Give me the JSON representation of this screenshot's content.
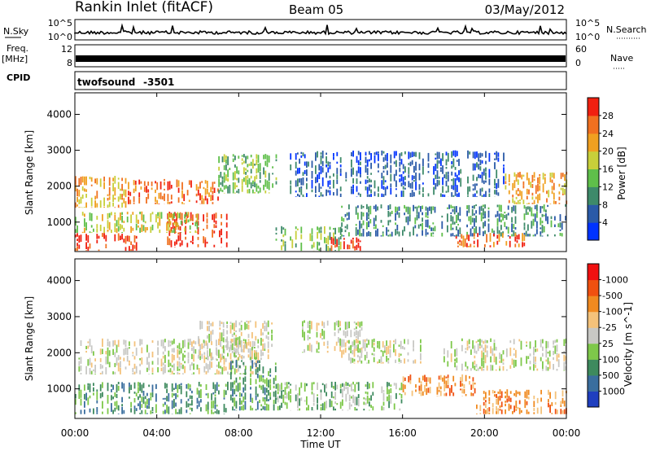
{
  "header": {
    "station": "Rankin Inlet (fitACF)",
    "beam": "Beam 05",
    "date": "03/May/2012"
  },
  "noise_panel": {
    "left_label": "N.Sky",
    "right_label": "N.Search",
    "left_ticks": [
      "10^5",
      "10^0"
    ],
    "right_ticks": [
      "10^5",
      "10^0"
    ]
  },
  "freq_panel": {
    "left_label": "Freq.",
    "left_unit": "[MHz]",
    "right_label": "Nave",
    "left_ticks": [
      "12",
      "8"
    ],
    "right_ticks": [
      "60",
      "0"
    ]
  },
  "cpid_panel": {
    "label": "CPID",
    "program": "twofsound",
    "id": "-3501"
  },
  "chart_data": [
    {
      "type": "heatmap",
      "name": "power",
      "xlabel": "",
      "ylabel": "Slant Range [km]",
      "x_ticks": [
        "00:00",
        "04:00",
        "08:00",
        "12:00",
        "16:00",
        "20:00",
        "00:00"
      ],
      "y_ticks": [
        "1000",
        "2000",
        "3000",
        "4000"
      ],
      "ylim": [
        180,
        4600
      ],
      "colorbar": {
        "label": "Power [dB]",
        "ticks": [
          "4",
          "8",
          "12",
          "16",
          "20",
          "24",
          "28"
        ],
        "colors": [
          "#0033ff",
          "#2a5aa8",
          "#3e8a6a",
          "#5fbf4a",
          "#c8cf3a",
          "#f0a020",
          "#f07020",
          "#f02010"
        ]
      },
      "echo_regions": [
        {
          "t0": 0.0,
          "t1": 3.0,
          "r0": 200,
          "r1": 700,
          "level": 7
        },
        {
          "t0": 4.5,
          "t1": 7.5,
          "r0": 300,
          "r1": 1300,
          "level": 7
        },
        {
          "t0": 0.0,
          "t1": 2.5,
          "r0": 1400,
          "r1": 2300,
          "level": 5
        },
        {
          "t0": 2.5,
          "t1": 7.0,
          "r0": 1500,
          "r1": 2200,
          "level": 6
        },
        {
          "t0": 7.0,
          "t1": 9.8,
          "r0": 1800,
          "r1": 2900,
          "level": 3
        },
        {
          "t0": 0.0,
          "t1": 6.0,
          "r0": 700,
          "r1": 1300,
          "level": 4
        },
        {
          "t0": 9.8,
          "t1": 13.0,
          "r0": 200,
          "r1": 900,
          "level": 3
        },
        {
          "t0": 12.5,
          "t1": 14.0,
          "r0": 200,
          "r1": 600,
          "level": 7
        },
        {
          "t0": 13.0,
          "t1": 24.0,
          "r0": 600,
          "r1": 1500,
          "level": 2
        },
        {
          "t0": 10.5,
          "t1": 21.0,
          "r0": 1700,
          "r1": 3000,
          "level": 1
        },
        {
          "t0": 18.5,
          "t1": 22.0,
          "r0": 300,
          "r1": 700,
          "level": 6
        },
        {
          "t0": 21.0,
          "t1": 24.0,
          "r0": 1500,
          "r1": 2400,
          "level": 5
        }
      ]
    },
    {
      "type": "heatmap",
      "name": "velocity",
      "xlabel": "Time UT",
      "ylabel": "Slant Range [km]",
      "x_ticks": [
        "00:00",
        "04:00",
        "08:00",
        "12:00",
        "16:00",
        "20:00",
        "00:00"
      ],
      "y_ticks": [
        "1000",
        "2000",
        "3000",
        "4000"
      ],
      "ylim": [
        180,
        4600
      ],
      "colorbar": {
        "label": "Velocity [m s^-1]",
        "ticks": [
          "1000",
          "500",
          "100",
          "25",
          "-25",
          "-100",
          "-500",
          "-1000"
        ],
        "colors": [
          "#1f3fbf",
          "#3a6e9e",
          "#3e8a5e",
          "#7ec84a",
          "#c8c8c4",
          "#f4c27a",
          "#f08a20",
          "#f05010",
          "#f01010"
        ]
      },
      "echo_regions": [
        {
          "t0": 0.0,
          "t1": 9.0,
          "r0": 1400,
          "r1": 2400,
          "level": 4
        },
        {
          "t0": 6.0,
          "t1": 9.8,
          "r0": 1800,
          "r1": 2900,
          "level": 4
        },
        {
          "t0": 0.0,
          "t1": 7.5,
          "r0": 300,
          "r1": 1200,
          "level": 2
        },
        {
          "t0": 7.5,
          "t1": 9.8,
          "r0": 400,
          "r1": 1800,
          "level": 2
        },
        {
          "t0": 9.8,
          "t1": 16.0,
          "r0": 400,
          "r1": 1200,
          "level": 3
        },
        {
          "t0": 11.0,
          "t1": 14.0,
          "r0": 2000,
          "r1": 2900,
          "level": 4
        },
        {
          "t0": 16.0,
          "t1": 19.5,
          "r0": 800,
          "r1": 1400,
          "level": 6
        },
        {
          "t0": 19.5,
          "t1": 24.0,
          "r0": 300,
          "r1": 1000,
          "level": 6
        },
        {
          "t0": 18.0,
          "t1": 24.0,
          "r0": 1500,
          "r1": 2400,
          "level": 4
        },
        {
          "t0": 13.0,
          "t1": 17.0,
          "r0": 1700,
          "r1": 2400,
          "level": 4
        }
      ]
    }
  ]
}
